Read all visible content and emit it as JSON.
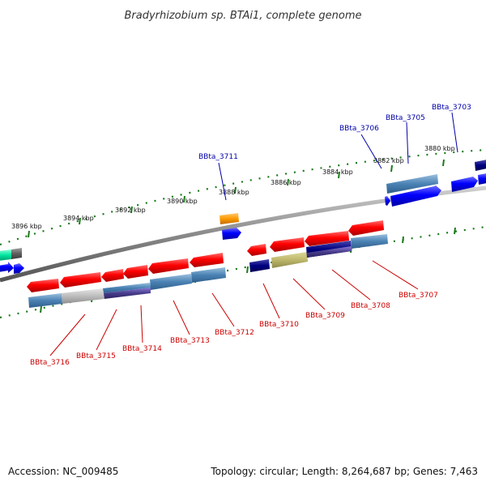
{
  "title": "Bradyrhizobium sp. BTAi1, complete genome",
  "footer": {
    "accession": "Accession: NC_009485",
    "topology": "Topology: circular; Length: 8,264,687 bp; Genes: 7,463"
  },
  "kbp_labels": [
    "3896 kbp",
    "3894 kbp",
    "3892 kbp",
    "3890 kbp",
    "3888 kbp",
    "3886 kbp",
    "3884 kbp",
    "3882 kbp",
    "3880 kbp"
  ],
  "genes_top": [
    "BBta_3711",
    "BBta_3706",
    "BBta_3705",
    "BBta_3703"
  ],
  "genes_bottom": [
    "BBta_3716",
    "BBta_3715",
    "BBta_3714",
    "BBta_3713",
    "BBta_3712",
    "BBta_3710",
    "BBta_3709",
    "BBta_3708",
    "BBta_3707"
  ],
  "colors": {
    "forward_label": "#0000aa",
    "reverse_label": "#cc0000",
    "tick": "#006600",
    "backbone": "#777777"
  }
}
